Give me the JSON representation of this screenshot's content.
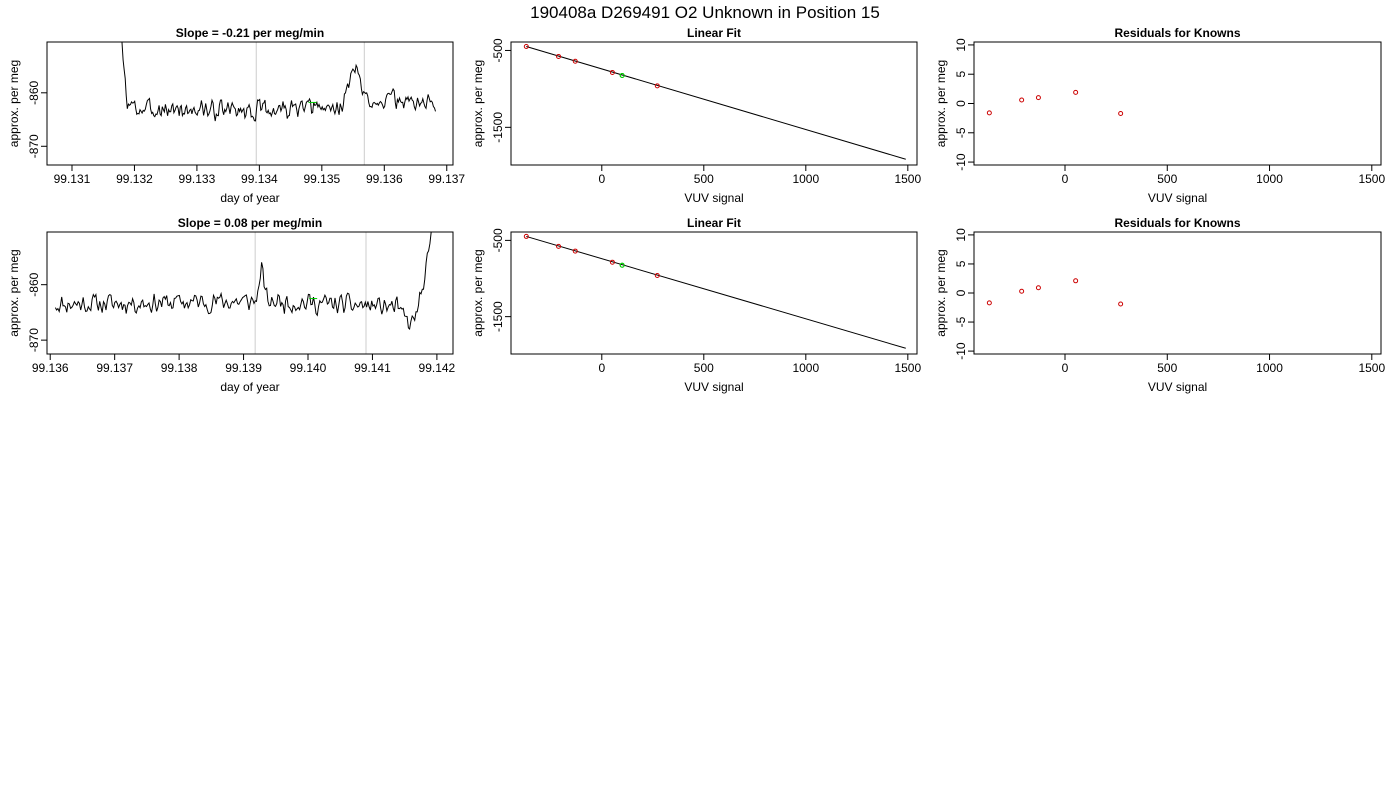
{
  "figure_title": "190408a     D269491   O2 Unknown in Position  15",
  "chart_data": [
    {
      "id": "ts-1",
      "type": "line",
      "title": "Slope =  -0.21  per meg/min",
      "xlabel": "day of year",
      "ylabel": "approx. per meg",
      "xlim": [
        99.1306,
        99.1371
      ],
      "ylim": [
        -873.5,
        -850.5
      ],
      "xticks": [
        99.131,
        99.132,
        99.133,
        99.134,
        99.135,
        99.136,
        99.137
      ],
      "xtick_labels": [
        "99.131",
        "99.132",
        "99.133",
        "99.134",
        "99.135",
        "99.136",
        "99.137"
      ],
      "yticks": [
        -860,
        -870
      ],
      "ytick_labels": [
        "-860",
        "-870"
      ],
      "vlines": [
        99.13395,
        99.13568
      ],
      "series_color": "#000000",
      "highlight": {
        "x": 99.13485,
        "y": -861.8,
        "color": "#00cc00"
      },
      "series": [
        {
          "x_start": 99.13175,
          "x_end": 99.13682,
          "n": 300,
          "base": -863.3,
          "noise": 1.4,
          "seed": 3,
          "knots": [
            [
              0,
              -840
            ],
            [
              0.01,
              -852
            ],
            [
              0.025,
              -861.5
            ],
            [
              0.05,
              -863
            ],
            [
              0.4,
              -863.3
            ],
            [
              0.7,
              -862.8
            ],
            [
              0.75,
              -854.5
            ],
            [
              0.77,
              -861
            ],
            [
              1,
              -862
            ]
          ]
        }
      ]
    },
    {
      "id": "fit-1",
      "type": "line",
      "title": "Linear Fit",
      "xlabel": "VUV signal",
      "ylabel": "approx. per meg",
      "xlim": [
        -445,
        1545
      ],
      "ylim": [
        -1990,
        -390
      ],
      "xticks": [
        0,
        500,
        1000,
        1500
      ],
      "xtick_labels": [
        "0",
        "500",
        "1000",
        "1500"
      ],
      "yticks": [
        -500,
        -1500
      ],
      "ytick_labels": [
        "-500",
        "-1500"
      ],
      "fit_line": {
        "x": [
          -370,
          1490
        ],
        "y": [
          -448,
          -1915
        ]
      },
      "knowns": {
        "x": [
          -370,
          -212,
          -130,
          52,
          272
        ],
        "y": [
          -448,
          -578,
          -640,
          -786,
          -960
        ],
        "color": "#cc0000"
      },
      "unknown": {
        "x": [
          100,
          100
        ],
        "y": [
          -826,
          -826
        ],
        "color": "#00cc00"
      }
    },
    {
      "id": "res-1",
      "type": "scatter",
      "title": "Residuals for Knowns",
      "xlabel": "VUV signal",
      "ylabel": "approx. per meg",
      "xlim": [
        -445,
        1545
      ],
      "ylim": [
        -10.5,
        10.5
      ],
      "xticks": [
        0,
        500,
        1000,
        1500
      ],
      "xtick_labels": [
        "0",
        "500",
        "1000",
        "1500"
      ],
      "yticks": [
        10,
        5,
        0,
        -5,
        -10
      ],
      "ytick_labels": [
        "10",
        "5",
        "0",
        "-5",
        "-10"
      ],
      "points": {
        "x": [
          -370,
          -212,
          -130,
          52,
          272
        ],
        "y": [
          -1.6,
          0.6,
          1.0,
          1.9,
          -1.7
        ],
        "color": "#cc0000"
      }
    },
    {
      "id": "ts-2",
      "type": "line",
      "title": "Slope =  0.08  per meg/min",
      "xlabel": "day of year",
      "ylabel": "approx. per meg",
      "xlim": [
        99.13595,
        99.14225
      ],
      "ylim": [
        -872.5,
        -850.5
      ],
      "xticks": [
        99.136,
        99.137,
        99.138,
        99.139,
        99.14,
        99.141,
        99.142
      ],
      "xtick_labels": [
        "99.136",
        "99.137",
        "99.138",
        "99.139",
        "99.140",
        "99.141",
        "99.142"
      ],
      "yticks": [
        -860,
        -870
      ],
      "ytick_labels": [
        "-860",
        "-870"
      ],
      "vlines": [
        99.13918,
        99.1409
      ],
      "series_color": "#000000",
      "highlight": {
        "x": 99.14008,
        "y": -862.5,
        "color": "#00cc00"
      },
      "series": [
        {
          "x_start": 99.13608,
          "x_end": 99.14195,
          "n": 300,
          "base": -863.2,
          "noise": 1.4,
          "seed": 11,
          "knots": [
            [
              0,
              -863.5
            ],
            [
              0.53,
              -863
            ],
            [
              0.545,
              -857.5
            ],
            [
              0.56,
              -863
            ],
            [
              0.9,
              -864
            ],
            [
              0.94,
              -867.5
            ],
            [
              0.96,
              -864
            ],
            [
              0.98,
              -858
            ],
            [
              1,
              -848
            ]
          ]
        }
      ]
    },
    {
      "id": "fit-2",
      "type": "line",
      "title": "Linear Fit",
      "xlabel": "VUV signal",
      "ylabel": "approx. per meg",
      "xlim": [
        -445,
        1545
      ],
      "ylim": [
        -1990,
        -390
      ],
      "xticks": [
        0,
        500,
        1000,
        1500
      ],
      "xtick_labels": [
        "0",
        "500",
        "1000",
        "1500"
      ],
      "yticks": [
        -500,
        -1500
      ],
      "ytick_labels": [
        "-500",
        "-1500"
      ],
      "fit_line": {
        "x": [
          -370,
          1490
        ],
        "y": [
          -448,
          -1915
        ]
      },
      "knowns": {
        "x": [
          -370,
          -212,
          -130,
          52,
          272
        ],
        "y": [
          -448,
          -578,
          -640,
          -786,
          -960
        ],
        "color": "#cc0000"
      },
      "unknown": {
        "x": [
          100,
          100
        ],
        "y": [
          -826,
          -826
        ],
        "color": "#00cc00"
      }
    },
    {
      "id": "res-2",
      "type": "scatter",
      "title": "Residuals for Knowns",
      "xlabel": "VUV signal",
      "ylabel": "approx. per meg",
      "xlim": [
        -445,
        1545
      ],
      "ylim": [
        -10.5,
        10.5
      ],
      "xticks": [
        0,
        500,
        1000,
        1500
      ],
      "xtick_labels": [
        "0",
        "500",
        "1000",
        "1500"
      ],
      "yticks": [
        10,
        5,
        0,
        -5,
        -10
      ],
      "ytick_labels": [
        "10",
        "5",
        "0",
        "-5",
        "-10"
      ],
      "points": {
        "x": [
          -370,
          -212,
          -130,
          52,
          272
        ],
        "y": [
          -1.7,
          0.3,
          0.9,
          2.1,
          -1.9
        ],
        "color": "#cc0000"
      }
    }
  ]
}
